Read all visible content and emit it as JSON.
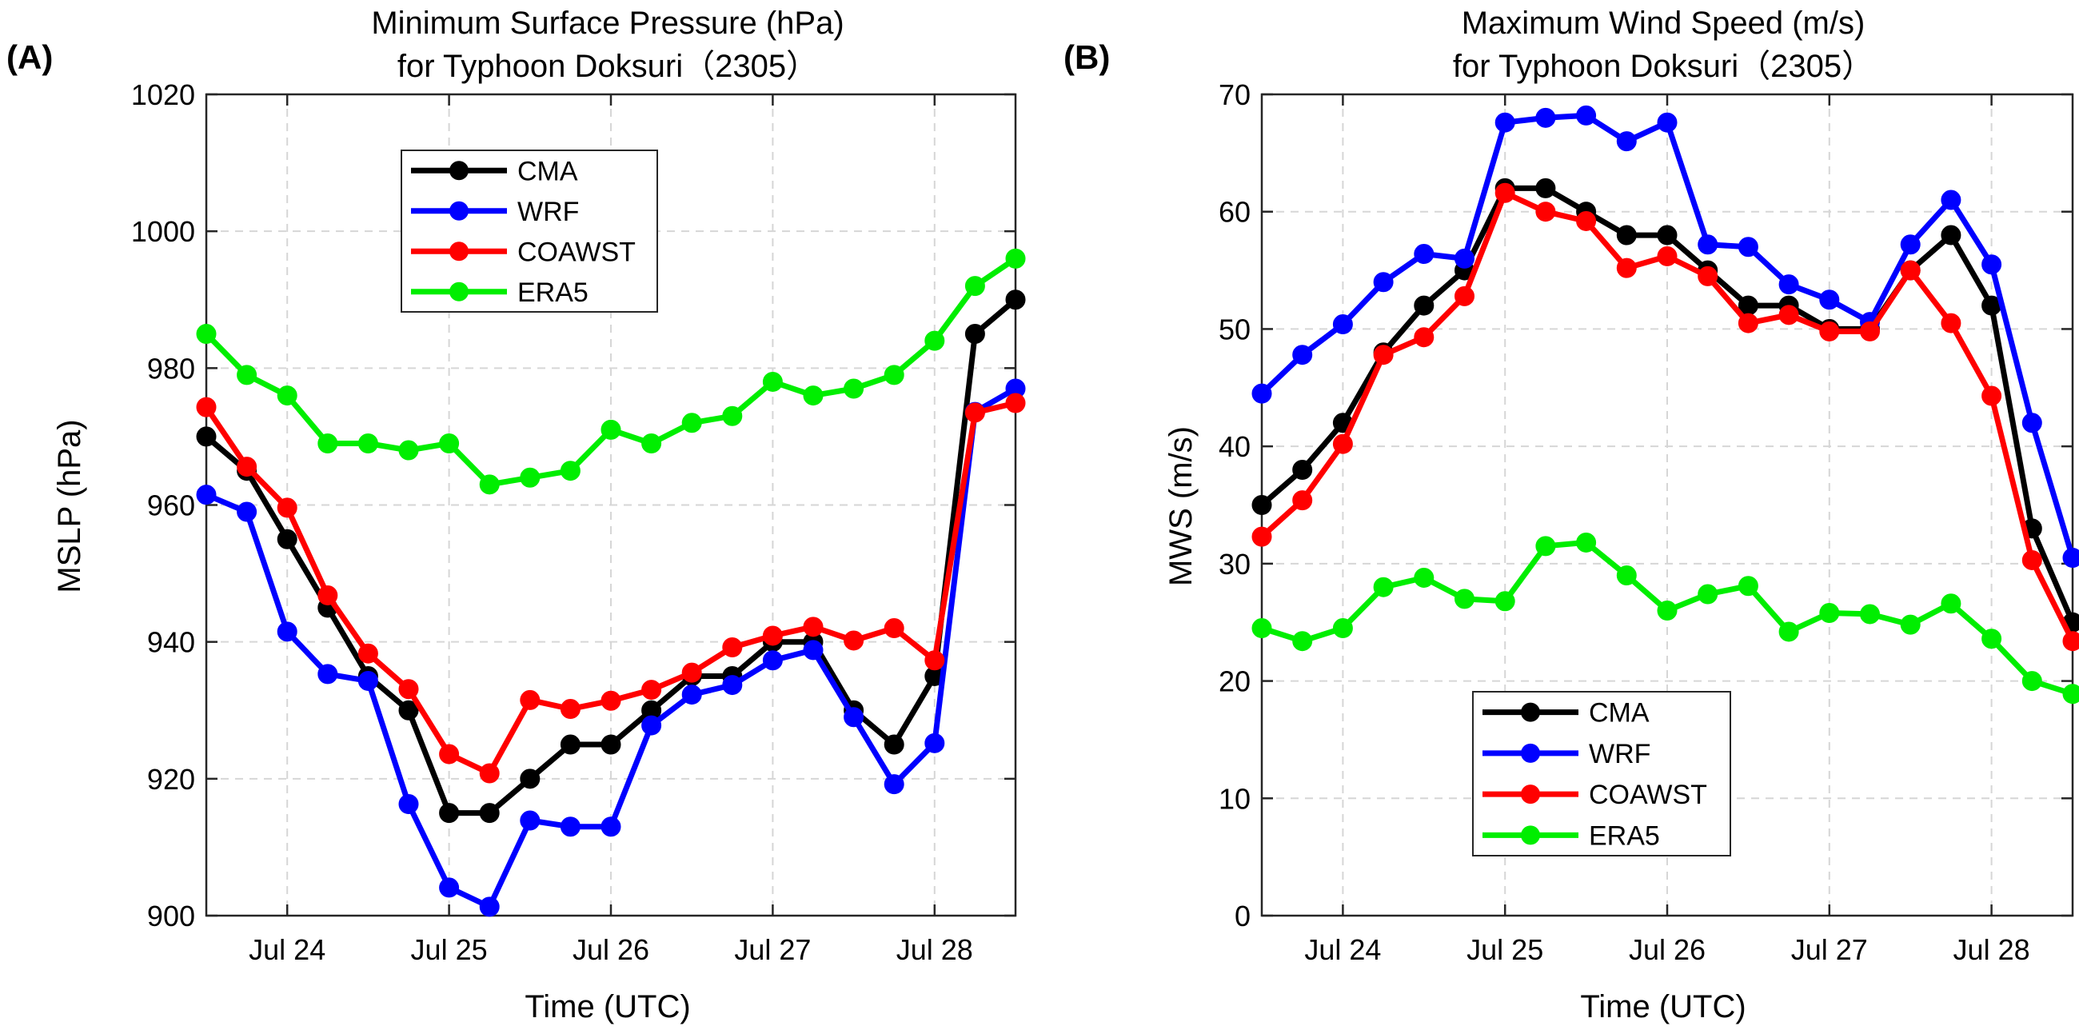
{
  "panel_labels": [
    "(A)",
    "(B)"
  ],
  "chart_data": [
    {
      "type": "line",
      "title": "Minimum Surface Pressure (hPa)",
      "subtitle": "for Typhoon Doksuri（2305）",
      "xlabel": "Time (UTC)",
      "ylabel": "MSLP (hPa)",
      "xlim": [
        0,
        20
      ],
      "ylim": [
        900,
        1020
      ],
      "yticks": [
        900,
        920,
        940,
        960,
        980,
        1000,
        1020
      ],
      "xtick_positions": [
        2,
        6,
        10,
        14,
        18
      ],
      "xtick_labels": [
        "Jul 24",
        "Jul 25",
        "Jul 26",
        "Jul 27",
        "Jul 28"
      ],
      "x": [
        0,
        1,
        2,
        3,
        4,
        5,
        6,
        7,
        8,
        9,
        10,
        11,
        12,
        13,
        14,
        15,
        16,
        17,
        18,
        19,
        20
      ],
      "grid": true,
      "legend_position": "upper-center",
      "series": [
        {
          "name": "CMA",
          "color": "#000000",
          "values": [
            970,
            965,
            955,
            945,
            935,
            930,
            915,
            915,
            920,
            925,
            925,
            930,
            935,
            935,
            940,
            940,
            930,
            925,
            935,
            985,
            990
          ]
        },
        {
          "name": "WRF",
          "color": "#0000ff",
          "values": [
            961.5,
            959,
            941.5,
            935.3,
            934.3,
            916.3,
            904.1,
            901.3,
            913.9,
            913,
            913,
            927.8,
            932.3,
            933.7,
            937.3,
            938.8,
            929,
            919.2,
            925.2,
            973.6,
            977
          ]
        },
        {
          "name": "COAWST",
          "color": "#ff0000",
          "values": [
            974.3,
            965.6,
            959.6,
            946.8,
            938.3,
            933.1,
            923.6,
            920.8,
            931.5,
            930.2,
            931.4,
            933,
            935.5,
            939.2,
            940.9,
            942.2,
            940.2,
            942,
            937.3,
            973.5,
            974.9
          ]
        },
        {
          "name": "ERA5",
          "color": "#00ee00",
          "values": [
            985,
            979,
            976,
            969,
            969,
            968,
            969,
            963,
            964,
            965,
            971,
            969,
            972,
            973,
            978,
            976,
            977,
            979,
            984,
            992,
            996
          ]
        }
      ]
    },
    {
      "type": "line",
      "title": "Maximum Wind Speed (m/s)",
      "subtitle": "for Typhoon Doksuri（2305）",
      "xlabel": "Time (UTC)",
      "ylabel": "MWS (m/s)",
      "xlim": [
        0,
        20
      ],
      "ylim": [
        0,
        70
      ],
      "yticks": [
        0,
        10,
        20,
        30,
        40,
        50,
        60,
        70
      ],
      "xtick_positions": [
        2,
        6,
        10,
        14,
        18
      ],
      "xtick_labels": [
        "Jul 24",
        "Jul 25",
        "Jul 26",
        "Jul 27",
        "Jul 28"
      ],
      "x": [
        0,
        1,
        2,
        3,
        4,
        5,
        6,
        7,
        8,
        9,
        10,
        11,
        12,
        13,
        14,
        15,
        16,
        17,
        18,
        19,
        20
      ],
      "grid": true,
      "legend_position": "lower-center",
      "series": [
        {
          "name": "CMA",
          "color": "#000000",
          "values": [
            35,
            38,
            42,
            48,
            52,
            55,
            62,
            62,
            60,
            58,
            58,
            55,
            52,
            52,
            50,
            50,
            55,
            58,
            52,
            33,
            25
          ]
        },
        {
          "name": "WRF",
          "color": "#0000ff",
          "values": [
            44.5,
            47.8,
            50.4,
            54,
            56.4,
            56,
            67.6,
            68,
            68.2,
            66,
            67.6,
            57.2,
            57,
            53.8,
            52.5,
            50.6,
            57.2,
            61,
            55.5,
            42,
            30.5
          ]
        },
        {
          "name": "COAWST",
          "color": "#ff0000",
          "values": [
            32.3,
            35.4,
            40.2,
            47.8,
            49.3,
            52.8,
            61.6,
            60,
            59.2,
            55.2,
            56.2,
            54.5,
            50.5,
            51.2,
            49.8,
            49.8,
            55,
            50.5,
            44.3,
            30.3,
            23.4
          ]
        },
        {
          "name": "ERA5",
          "color": "#00ee00",
          "values": [
            24.5,
            23.4,
            24.5,
            28,
            28.8,
            27,
            26.8,
            31.5,
            31.8,
            29,
            26,
            27.4,
            28.1,
            24.2,
            25.8,
            25.7,
            24.8,
            26.6,
            23.6,
            20,
            18.9
          ]
        }
      ]
    }
  ]
}
